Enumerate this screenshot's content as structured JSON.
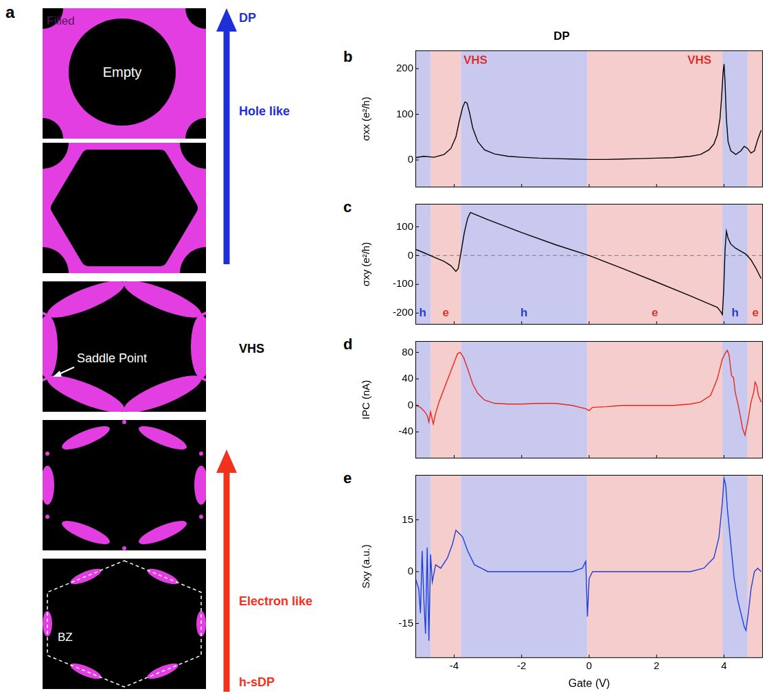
{
  "panel_a": {
    "label": "a",
    "frames": [
      [
        "Filled",
        "Empty"
      ],
      [],
      [
        "Saddle Point"
      ],
      [],
      [
        "BZ"
      ]
    ],
    "arrows": [
      {
        "end_label": "DP",
        "text": "Hole like",
        "color": "#1f2fd6"
      },
      {
        "end_label": "h-sDP",
        "text": "Electron like",
        "color": "#f0321e"
      }
    ],
    "middle_label": "VHS"
  },
  "regions": [
    {
      "from": -5.15,
      "to": -4.7,
      "color": "#c9c9ef"
    },
    {
      "from": -4.7,
      "to": -3.8,
      "color": "#f6cdcd"
    },
    {
      "from": -3.8,
      "to": -0.05,
      "color": "#c9c9ef"
    },
    {
      "from": -0.05,
      "to": 3.95,
      "color": "#f6cdcd"
    },
    {
      "from": 3.95,
      "to": 4.7,
      "color": "#c9c9ef"
    },
    {
      "from": 4.7,
      "to": 5.15,
      "color": "#f6cdcd"
    }
  ],
  "chart_data": [
    {
      "panel": "b",
      "type": "line",
      "title": "DP",
      "y_label": "σxx (e²/h)",
      "color": "#000000",
      "x": [
        -5.15,
        -4.9,
        -4.6,
        -4.3,
        -4.1,
        -3.95,
        -3.85,
        -3.75,
        -3.68,
        -3.62,
        -3.55,
        -3.45,
        -3.3,
        -3.1,
        -2.8,
        -2.4,
        -2,
        -1.5,
        -1,
        -0.5,
        0,
        0.5,
        1,
        1.5,
        2,
        2.5,
        3,
        3.3,
        3.55,
        3.7,
        3.8,
        3.88,
        3.93,
        3.97,
        4.0,
        4.03,
        4.07,
        4.12,
        4.2,
        4.35,
        4.5,
        4.6,
        4.7,
        4.8,
        4.9,
        5.0,
        5.1
      ],
      "values": [
        5,
        8,
        6,
        12,
        25,
        50,
        85,
        115,
        127,
        125,
        105,
        70,
        40,
        22,
        13,
        8,
        6,
        4,
        3,
        2,
        1,
        1,
        2,
        3,
        4,
        5,
        8,
        12,
        22,
        35,
        55,
        90,
        140,
        190,
        210,
        170,
        90,
        40,
        20,
        12,
        20,
        30,
        25,
        15,
        20,
        45,
        65
      ],
      "xlim": [
        -5.15,
        5.15
      ],
      "xticks": [
        -4,
        -2,
        0,
        2,
        4
      ],
      "ylim": [
        -60,
        240
      ],
      "yticks": [
        0,
        100,
        200
      ],
      "grid": false,
      "tick_labels": "y",
      "annotations": [
        {
          "text": "VHS",
          "x": -3.37,
          "color": "#d9302a"
        },
        {
          "text": "VHS",
          "x": 3.27,
          "color": "#d9302a"
        }
      ]
    },
    {
      "panel": "c",
      "type": "line",
      "y_label": "σxy (e²/h)",
      "color": "#000000",
      "x": [
        -5.15,
        -4.9,
        -4.6,
        -4.3,
        -4.1,
        -3.95,
        -3.88,
        -3.8,
        -3.7,
        -3.6,
        -3.52,
        -3.0,
        -2.0,
        -1.0,
        0,
        1.0,
        2.0,
        3.0,
        3.5,
        3.8,
        3.9,
        3.95,
        3.99,
        4.03,
        4.07,
        4.12,
        4.2,
        4.35,
        4.5,
        4.65,
        4.8,
        4.95,
        5.1
      ],
      "values": [
        22,
        10,
        -5,
        -20,
        -35,
        -55,
        -45,
        10,
        80,
        130,
        150,
        125,
        80,
        38,
        0,
        -45,
        -92,
        -140,
        -165,
        -180,
        -195,
        -205,
        -120,
        20,
        85,
        60,
        40,
        25,
        15,
        5,
        -15,
        -45,
        -80
      ],
      "xlim": [
        -5.15,
        5.15
      ],
      "xticks": [
        -4,
        -2,
        0,
        2,
        4
      ],
      "ylim": [
        -240,
        180
      ],
      "yticks": [
        -200,
        -100,
        0,
        100
      ],
      "grid": false,
      "tick_labels": "y",
      "annotations": [
        {
          "y": 0,
          "line_style": "dashed",
          "color": "#8c8c8c"
        },
        {
          "text": "h",
          "x": -4.93,
          "color": "#2a3bd0"
        },
        {
          "text": "e",
          "x": -4.25,
          "color": "#d9302a"
        },
        {
          "text": "h",
          "x": -1.93,
          "color": "#2a3bd0"
        },
        {
          "text": "e",
          "x": 1.95,
          "color": "#d9302a"
        },
        {
          "text": "h",
          "x": 4.33,
          "color": "#2a3bd0"
        },
        {
          "text": "e",
          "x": 4.93,
          "color": "#d9302a"
        }
      ]
    },
    {
      "panel": "d",
      "type": "line",
      "y_label": "IPC (nA)",
      "color": "#e8271c",
      "x": [
        -5.15,
        -5.0,
        -4.9,
        -4.8,
        -4.75,
        -4.7,
        -4.62,
        -4.55,
        -4.45,
        -4.3,
        -4.15,
        -4.0,
        -3.9,
        -3.82,
        -3.72,
        -3.6,
        -3.45,
        -3.3,
        -3.1,
        -2.8,
        -2.4,
        -2,
        -1.5,
        -1,
        -0.5,
        -0.1,
        0,
        0.1,
        0.5,
        1,
        1.5,
        2,
        2.5,
        3,
        3.3,
        3.6,
        3.8,
        3.95,
        4.05,
        4.1,
        4.15,
        4.22,
        4.28,
        4.33,
        4.4,
        4.48,
        4.55,
        4.62,
        4.7,
        4.8,
        4.88,
        4.92,
        4.97,
        5.02,
        5.1
      ],
      "values": [
        0,
        -3,
        -8,
        -15,
        -25,
        -10,
        -28,
        -12,
        5,
        25,
        45,
        65,
        78,
        80,
        72,
        55,
        32,
        18,
        8,
        3,
        2,
        2,
        3,
        3,
        0,
        -5,
        -8,
        -3,
        -2,
        0,
        0,
        0,
        0,
        2,
        5,
        15,
        40,
        70,
        80,
        83,
        75,
        45,
        42,
        20,
        5,
        -15,
        -35,
        -45,
        -25,
        5,
        20,
        35,
        30,
        15,
        5
      ],
      "xlim": [
        -5.15,
        5.15
      ],
      "xticks": [
        -4,
        -2,
        0,
        2,
        4
      ],
      "ylim": [
        -80,
        97
      ],
      "yticks": [
        -40,
        0,
        40,
        80
      ],
      "grid": false,
      "tick_labels": "y"
    },
    {
      "panel": "e",
      "type": "line",
      "y_label": "Sxy (a.u.)",
      "x_label": "Gate (V)",
      "color": "#1f3fd8",
      "x": [
        -5.15,
        -5.05,
        -5.0,
        -4.95,
        -4.9,
        -4.85,
        -4.8,
        -4.75,
        -4.7,
        -4.65,
        -4.55,
        -4.4,
        -4.2,
        -4.05,
        -3.95,
        -3.85,
        -3.75,
        -3.6,
        -3.4,
        -3.2,
        -3,
        -2.5,
        -2,
        -1.5,
        -1,
        -0.5,
        -0.2,
        -0.1,
        -0.05,
        0,
        0.05,
        0.1,
        0.5,
        1,
        1.5,
        2,
        2.5,
        3,
        3.4,
        3.7,
        3.85,
        3.95,
        4.0,
        4.05,
        4.1,
        4.2,
        4.3,
        4.4,
        4.5,
        4.6,
        4.65,
        4.72,
        4.8,
        4.9,
        5.0,
        5.1
      ],
      "values": [
        -2,
        -5,
        -12,
        6,
        -8,
        -18,
        7,
        -20,
        5,
        -3,
        2,
        1,
        4,
        8,
        12,
        11,
        10,
        6,
        2,
        1,
        0,
        0,
        0,
        0,
        0,
        0,
        1,
        3,
        -13,
        -2,
        -1,
        0,
        0,
        0,
        0,
        0,
        0,
        0,
        1,
        4,
        10,
        20,
        27,
        25,
        18,
        8,
        -2,
        -8,
        -12,
        -16,
        -17,
        -12,
        -5,
        0,
        1,
        0
      ],
      "xlim": [
        -5.15,
        5.15
      ],
      "xticks": [
        -4,
        -2,
        0,
        2,
        4
      ],
      "ylim": [
        -25,
        28
      ],
      "yticks": [
        -15,
        0,
        15
      ],
      "grid": false,
      "tick_labels": true
    }
  ]
}
